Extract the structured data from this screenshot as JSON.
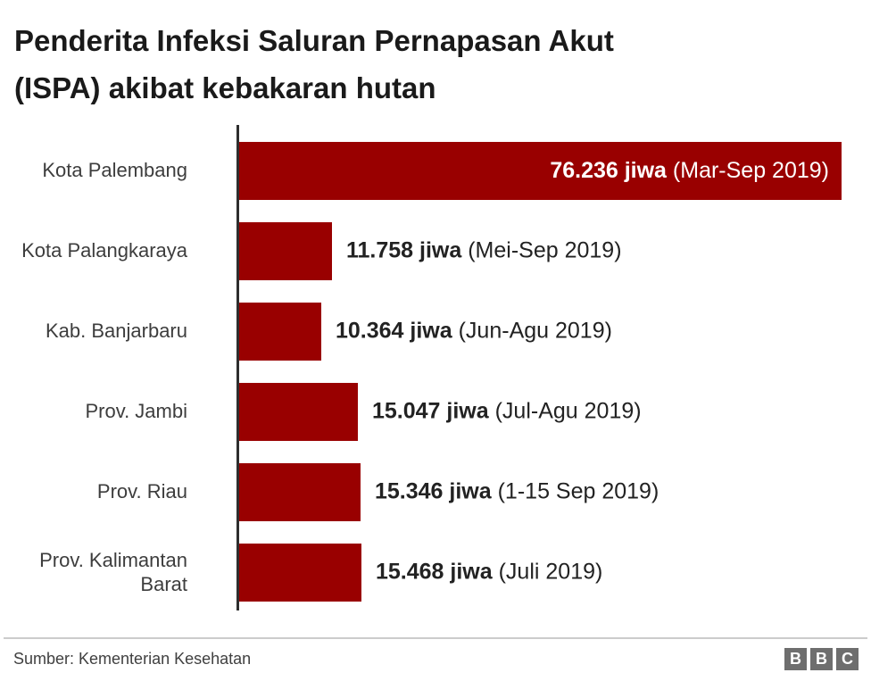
{
  "title": {
    "lines": [
      "Penderita Infeksi Saluran Pernapasan Akut",
      "(ISPA) akibat kebakaran hutan"
    ]
  },
  "chart_data": {
    "type": "bar",
    "orientation": "horizontal",
    "title": "Penderita Infeksi Saluran Pernapasan Akut (ISPA) akibat kebakaran hutan",
    "categories": [
      "Kota Palembang",
      "Kota Palangkaraya",
      "Kab. Banjarbaru",
      "Prov. Jambi",
      "Prov. Riau",
      "Prov. Kalimantan Barat"
    ],
    "values": [
      76236,
      11758,
      10364,
      15047,
      15346,
      15468
    ],
    "value_labels": [
      "76.236 jiwa",
      "11.758 jiwa",
      "10.364 jiwa",
      "15.047 jiwa",
      "15.346 jiwa",
      "15.468 jiwa"
    ],
    "period_labels": [
      "(Mar-Sep 2019)",
      "(Mei-Sep 2019)",
      "(Jun-Agu 2019)",
      "(Jul-Agu 2019)",
      "(1-15 Sep 2019)",
      "(Juli 2019)"
    ],
    "label_inside": [
      true,
      false,
      false,
      false,
      false,
      false
    ],
    "bar_color": "#990000",
    "axis_color": "#2e2e2e",
    "xlim": [
      0,
      76236
    ],
    "grid": false,
    "legend": "none"
  },
  "footer": {
    "source": "Sumber: Kementerian Kesehatan",
    "logo_letters": [
      "B",
      "B",
      "C"
    ],
    "logo_color": "#6e6e6e"
  }
}
